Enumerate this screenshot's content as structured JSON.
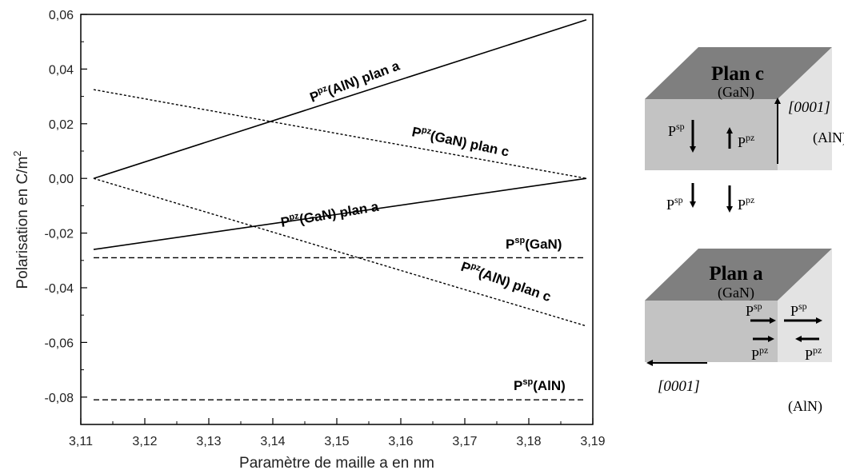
{
  "chart_data": {
    "type": "line",
    "title": "",
    "xlabel": "Paramètre de maille a en nm",
    "ylabel_main": "Polarisation en C/m",
    "ylabel_sup": "2",
    "xlim": [
      3.11,
      3.19
    ],
    "ylim": [
      -0.09,
      0.06
    ],
    "xticks": [
      3.11,
      3.12,
      3.13,
      3.14,
      3.15,
      3.16,
      3.17,
      3.18,
      3.19
    ],
    "xtick_labels": [
      "3,11",
      "3,12",
      "3,13",
      "3,14",
      "3,15",
      "3,16",
      "3,17",
      "3,18",
      "3,19"
    ],
    "yticks": [
      0.06,
      0.04,
      0.02,
      0.0,
      -0.02,
      -0.04,
      -0.06,
      -0.08
    ],
    "ytick_labels": [
      "0,06",
      "0,04",
      "0,02",
      "0,00",
      "-0,02",
      "-0,04",
      "-0,06",
      "-0,08"
    ],
    "grid": false,
    "series": [
      {
        "label_main": "P",
        "label_sup": "pz",
        "label_rest": "(AlN) plan a",
        "style": "solid",
        "x": [
          3.112,
          3.189
        ],
        "y": [
          0.0,
          0.058
        ]
      },
      {
        "label_main": "P",
        "label_sup": "pz",
        "label_rest": "(GaN) plan c",
        "style": "dotted",
        "x": [
          3.112,
          3.189
        ],
        "y": [
          0.0325,
          0.0
        ]
      },
      {
        "label_main": "P",
        "label_sup": "pz",
        "label_rest": "(GaN) plan a",
        "style": "solid",
        "x": [
          3.112,
          3.189
        ],
        "y": [
          -0.026,
          0.0
        ]
      },
      {
        "label_main": "P",
        "label_sup": "pz",
        "label_rest": "(AlN) plan c",
        "style": "dotted",
        "x": [
          3.112,
          3.189
        ],
        "y": [
          0.0,
          -0.054
        ]
      },
      {
        "label_main": "P",
        "label_sup": "sp",
        "label_rest": "(GaN)",
        "style": "dashed",
        "x": [
          3.112,
          3.189
        ],
        "y": [
          -0.029,
          -0.029
        ]
      },
      {
        "label_main": "P",
        "label_sup": "sp",
        "label_rest": "(AlN)",
        "style": "dashed",
        "x": [
          3.112,
          3.189
        ],
        "y": [
          -0.081,
          -0.081
        ]
      }
    ]
  },
  "diagram": {
    "top": {
      "title": "Plan c",
      "material_front": "(GaN)",
      "material_side": "(AlN)",
      "direction": "[0001]",
      "p": "P",
      "sup_sp": "sp",
      "sup_pz": "pz"
    },
    "bottom": {
      "title": "Plan a",
      "material_front": "(GaN)",
      "material_side": "(AlN)",
      "direction": "[0001]",
      "p": "P",
      "sup_sp": "sp",
      "sup_pz": "pz"
    }
  }
}
